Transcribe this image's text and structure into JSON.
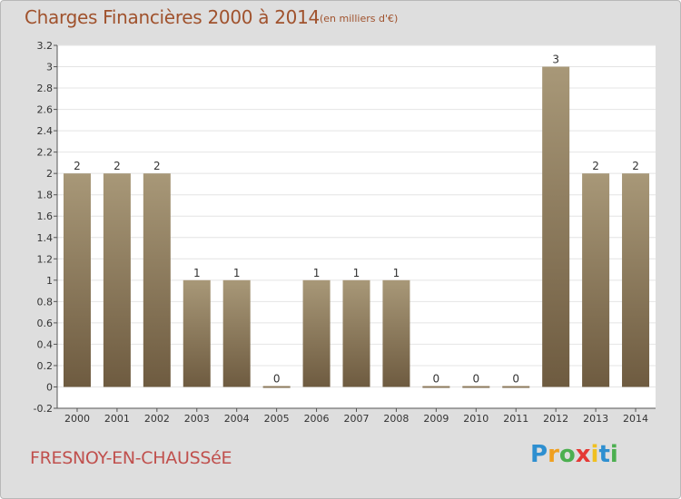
{
  "header": {
    "title": "Charges Financières 2000 à 2014",
    "subtitle": "(en milliers d'€)"
  },
  "footer": {
    "commune": "FRESNOY-EN-CHAUSSéE",
    "logo_letters": [
      "P",
      "r",
      "o",
      "x",
      "i",
      "t",
      "i"
    ],
    "logo_colors": [
      "#2e8fd0",
      "#f0a020",
      "#4caf50",
      "#e53935",
      "#f0c020",
      "#2e8fd0",
      "#4caf50"
    ]
  },
  "colors": {
    "bar_top": "#a89878",
    "bar_bottom": "#6e5b40",
    "plot_bg": "#ffffff",
    "frame_bg": "#dedede",
    "title": "#a0522d"
  },
  "chart_data": {
    "type": "bar",
    "categories": [
      "2000",
      "2001",
      "2002",
      "2003",
      "2004",
      "2005",
      "2006",
      "2007",
      "2008",
      "2009",
      "2010",
      "2011",
      "2012",
      "2013",
      "2014"
    ],
    "values": [
      2,
      2,
      2,
      1,
      1,
      0,
      1,
      1,
      1,
      0,
      0,
      0,
      3,
      2,
      2
    ],
    "labels": [
      "2",
      "2",
      "2",
      "1",
      "1",
      "0",
      "1",
      "1",
      "1",
      "0",
      "0",
      "0",
      "3",
      "2",
      "2"
    ],
    "yticks": [
      "-0.2",
      "0",
      "0.2",
      "0.4",
      "0.6",
      "0.8",
      "1",
      "1.2",
      "1.4",
      "1.6",
      "1.8",
      "2",
      "2.2",
      "2.4",
      "2.6",
      "2.8",
      "3",
      "3.2"
    ],
    "ylim": [
      -0.2,
      3.2
    ],
    "grid": true,
    "title": "Charges Financières 2000 à 2014",
    "xlabel": "",
    "ylabel": ""
  }
}
